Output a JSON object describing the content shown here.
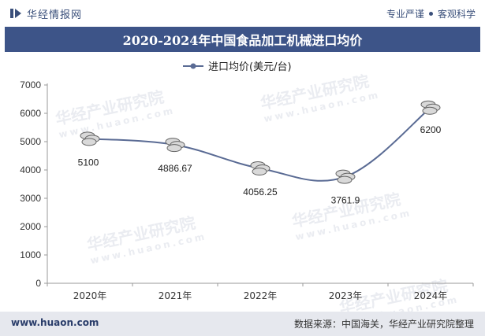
{
  "header": {
    "brand": "华经情报网",
    "tag_left": "专业严谨",
    "tag_right": "客观科学"
  },
  "chart_title": "2020-2024年中国食品加工机械进口均价",
  "footer": {
    "url": "www.huaon.com",
    "source": "数据来源：中国海关，华经产业研究院整理"
  },
  "watermark": {
    "text": "华经产业研究院",
    "url": "www.huaon.com"
  },
  "colors": {
    "title_bg": "#3d5488",
    "line": "#5a6b94",
    "accent": "#3a4f7a"
  },
  "chart_data": {
    "type": "line",
    "title": "2020-2024年中国食品加工机械进口均价",
    "categories": [
      "2020年",
      "2021年",
      "2022年",
      "2023年",
      "2024年"
    ],
    "series": [
      {
        "name": "进口均价(美元/台)",
        "values": [
          5100,
          4886.67,
          4056.25,
          3761.9,
          6200
        ]
      }
    ],
    "data_labels": [
      "5100",
      "4886.67",
      "4056.25",
      "3761.9",
      "6200"
    ],
    "yticks": [
      0,
      1000,
      2000,
      3000,
      4000,
      5000,
      6000,
      7000
    ],
    "ylim": [
      0,
      7000
    ],
    "smooth": true,
    "legend_position": "top-center",
    "grid": false
  }
}
